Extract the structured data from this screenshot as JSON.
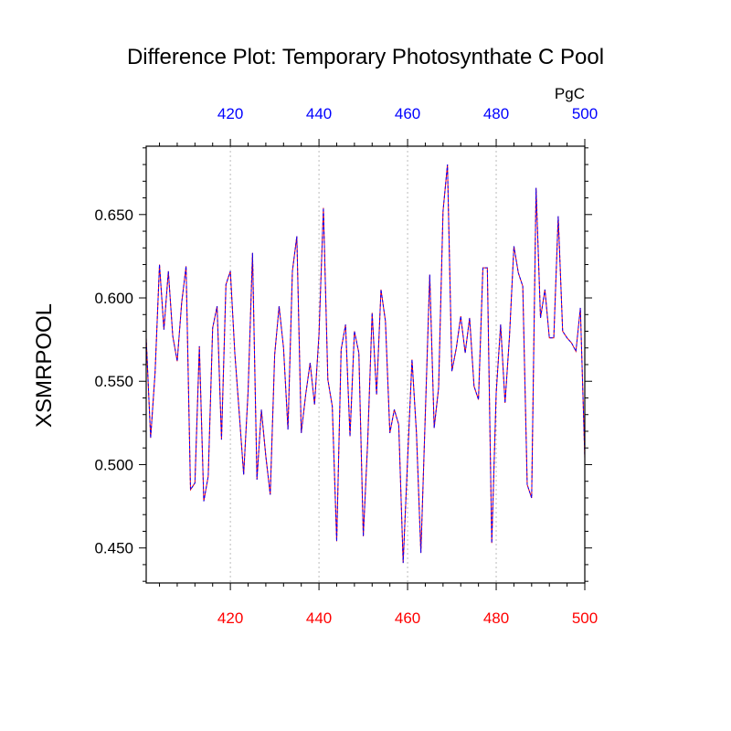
{
  "chart_data": {
    "type": "line",
    "title": "Difference Plot: Temporary Photosynthate C Pool",
    "units": "PgC",
    "ylabel": "XSMRPOOL",
    "xlim": [
      401,
      500
    ],
    "ylim": [
      0.429,
      0.691
    ],
    "yticks": [
      {
        "value": 0.45,
        "label": "0.450"
      },
      {
        "value": 0.5,
        "label": "0.500"
      },
      {
        "value": 0.55,
        "label": "0.550"
      },
      {
        "value": 0.6,
        "label": "0.600"
      },
      {
        "value": 0.65,
        "label": "0.650"
      }
    ],
    "xticks_bottom": [
      {
        "value": 420,
        "label": "420"
      },
      {
        "value": 440,
        "label": "440"
      },
      {
        "value": 460,
        "label": "460"
      },
      {
        "value": 480,
        "label": "480"
      },
      {
        "value": 500,
        "label": "500"
      }
    ],
    "xticks_top": [
      {
        "value": 420,
        "label": "420"
      },
      {
        "value": 440,
        "label": "440"
      },
      {
        "value": 460,
        "label": "460"
      },
      {
        "value": 480,
        "label": "480"
      },
      {
        "value": 500,
        "label": "500"
      }
    ],
    "grid": "vertical-dashed",
    "colors": {
      "bottom_axis": "#ff0000",
      "top_axis": "#0000ff",
      "line_solid": "#ff0000",
      "line_dashed": "#0000ff",
      "grid": "#bbbbbb"
    },
    "x": [
      401,
      402,
      403,
      404,
      405,
      406,
      407,
      408,
      409,
      410,
      411,
      412,
      413,
      414,
      415,
      416,
      417,
      418,
      419,
      420,
      421,
      422,
      423,
      424,
      425,
      426,
      427,
      428,
      429,
      430,
      431,
      432,
      433,
      434,
      435,
      436,
      437,
      438,
      439,
      440,
      441,
      442,
      443,
      444,
      445,
      446,
      447,
      448,
      449,
      450,
      451,
      452,
      453,
      454,
      455,
      456,
      457,
      458,
      459,
      460,
      461,
      462,
      463,
      464,
      465,
      466,
      467,
      468,
      469,
      470,
      471,
      472,
      473,
      474,
      475,
      476,
      477,
      478,
      479,
      480,
      481,
      482,
      483,
      484,
      485,
      486,
      487,
      488,
      489,
      490,
      491,
      492,
      493,
      494,
      495,
      496,
      497,
      498,
      499,
      500
    ],
    "series": [
      {
        "values": [
          0.576,
          0.516,
          0.555,
          0.62,
          0.581,
          0.616,
          0.577,
          0.562,
          0.597,
          0.619,
          0.485,
          0.489,
          0.571,
          0.478,
          0.493,
          0.582,
          0.595,
          0.515,
          0.608,
          0.616,
          0.567,
          0.531,
          0.494,
          0.544,
          0.627,
          0.491,
          0.533,
          0.505,
          0.482,
          0.566,
          0.595,
          0.57,
          0.521,
          0.616,
          0.637,
          0.519,
          0.542,
          0.561,
          0.536,
          0.578,
          0.654,
          0.551,
          0.535,
          0.454,
          0.569,
          0.584,
          0.517,
          0.58,
          0.567,
          0.457,
          0.514,
          0.591,
          0.542,
          0.605,
          0.586,
          0.519,
          0.533,
          0.524,
          0.441,
          0.503,
          0.563,
          0.519,
          0.447,
          0.53,
          0.614,
          0.522,
          0.546,
          0.652,
          0.68,
          0.556,
          0.57,
          0.589,
          0.567,
          0.588,
          0.547,
          0.539,
          0.618,
          0.618,
          0.453,
          0.543,
          0.584,
          0.537,
          0.577,
          0.631,
          0.615,
          0.607,
          0.488,
          0.48,
          0.666,
          0.588,
          0.605,
          0.576,
          0.576,
          0.649,
          0.58,
          0.576,
          0.573,
          0.568,
          0.594,
          0.504
        ]
      }
    ]
  }
}
